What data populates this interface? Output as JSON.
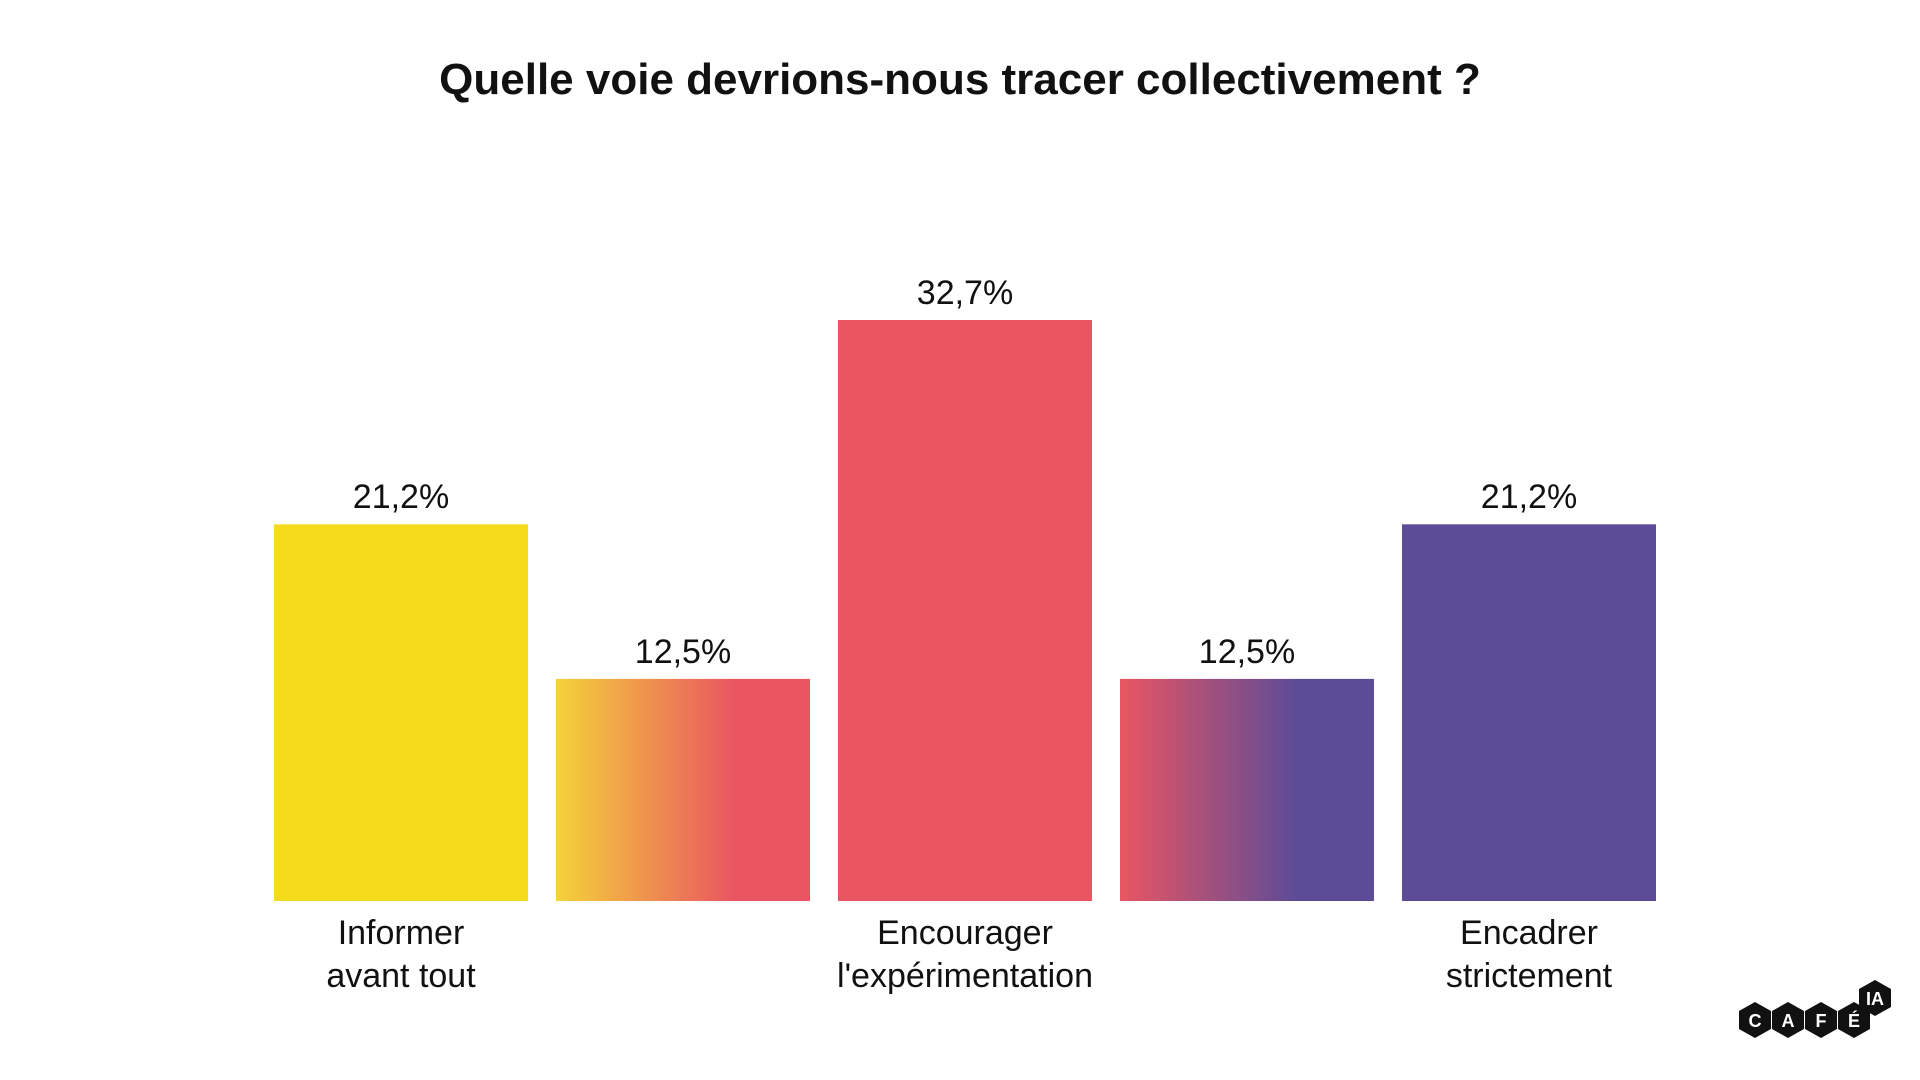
{
  "chart_data": {
    "type": "bar",
    "title": "Quelle voie devrions-nous tracer collectivement ?",
    "categories": [
      "Informer avant tout",
      "",
      "Encourager l'expérimentation",
      "",
      "Encadrer strictement"
    ],
    "values": [
      21.2,
      12.5,
      32.7,
      12.5,
      21.2
    ],
    "value_labels": [
      "21,2%",
      "12,5%",
      "32,7%",
      "12,5%",
      "21,2%"
    ],
    "category_labels": [
      [
        "Informer",
        "avant tout"
      ],
      [],
      [
        "Encourager",
        "l'expérimentation"
      ],
      [],
      [
        "Encadrer",
        "strictement"
      ]
    ],
    "colors": [
      [
        "#F4DC1A",
        "#F4DC1A"
      ],
      [
        "#F4D23A",
        "#E95661"
      ],
      [
        "#E95661",
        "#E95661"
      ],
      [
        "#E95661",
        "#5C4B97"
      ],
      [
        "#5C4B97",
        "#5C4B97"
      ]
    ],
    "xlabel": "",
    "ylabel": "",
    "ylim": [
      0,
      32.7
    ],
    "grid": false,
    "legend": "none"
  },
  "logo": {
    "text": "CAFÉ IA",
    "letters": [
      "C",
      "A",
      "F",
      "É"
    ],
    "badge": "IA"
  }
}
